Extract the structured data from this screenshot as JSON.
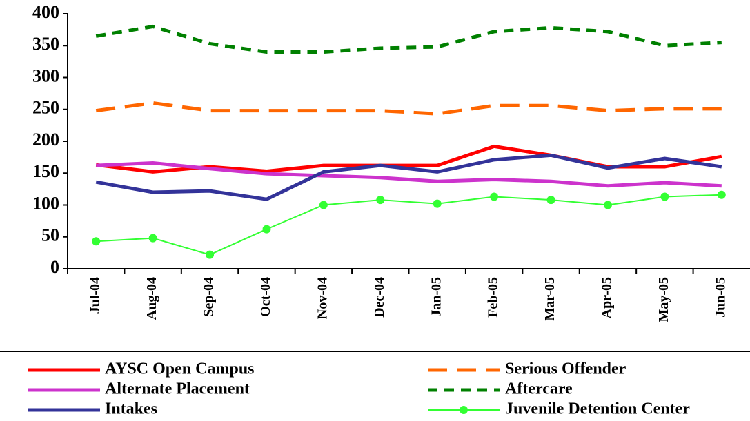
{
  "chart_data": {
    "type": "line",
    "categories": [
      "Jul-04",
      "Aug-04",
      "Sep-04",
      "Oct-04",
      "Nov-04",
      "Dec-04",
      "Jan-05",
      "Feb-05",
      "Mar-05",
      "Apr-05",
      "May-05",
      "Jun-05"
    ],
    "series": [
      {
        "name": "AYSC Open Campus",
        "color": "#ff0000",
        "line_style": "solid",
        "values": [
          163,
          152,
          160,
          153,
          162,
          162,
          162,
          192,
          178,
          160,
          160,
          176
        ]
      },
      {
        "name": "Serious Offender",
        "color": "#ff6600",
        "line_style": "dashed",
        "values": [
          248,
          260,
          248,
          248,
          248,
          248,
          243,
          256,
          256,
          248,
          251,
          251
        ]
      },
      {
        "name": "Alternate Placement",
        "color": "#cc33cc",
        "line_style": "solid",
        "values": [
          162,
          166,
          157,
          149,
          146,
          143,
          137,
          140,
          137,
          130,
          135,
          130
        ]
      },
      {
        "name": "Aftercare",
        "color": "#008000",
        "line_style": "dotted",
        "values": [
          365,
          380,
          353,
          340,
          340,
          346,
          348,
          372,
          378,
          372,
          350,
          355
        ]
      },
      {
        "name": "Intakes",
        "color": "#333399",
        "line_style": "solid",
        "values": [
          136,
          120,
          122,
          109,
          152,
          162,
          152,
          171,
          178,
          158,
          173,
          160
        ]
      },
      {
        "name": "Juvenile Detention Center",
        "color": "#33ff33",
        "line_style": "solid",
        "markers": true,
        "values": [
          43,
          48,
          22,
          62,
          100,
          108,
          102,
          113,
          108,
          100,
          113,
          116
        ]
      }
    ],
    "ylim": [
      0,
      400
    ],
    "yticks": [
      0,
      50,
      100,
      150,
      200,
      250,
      300,
      350,
      400
    ],
    "grid": false,
    "legend": "bottom"
  }
}
